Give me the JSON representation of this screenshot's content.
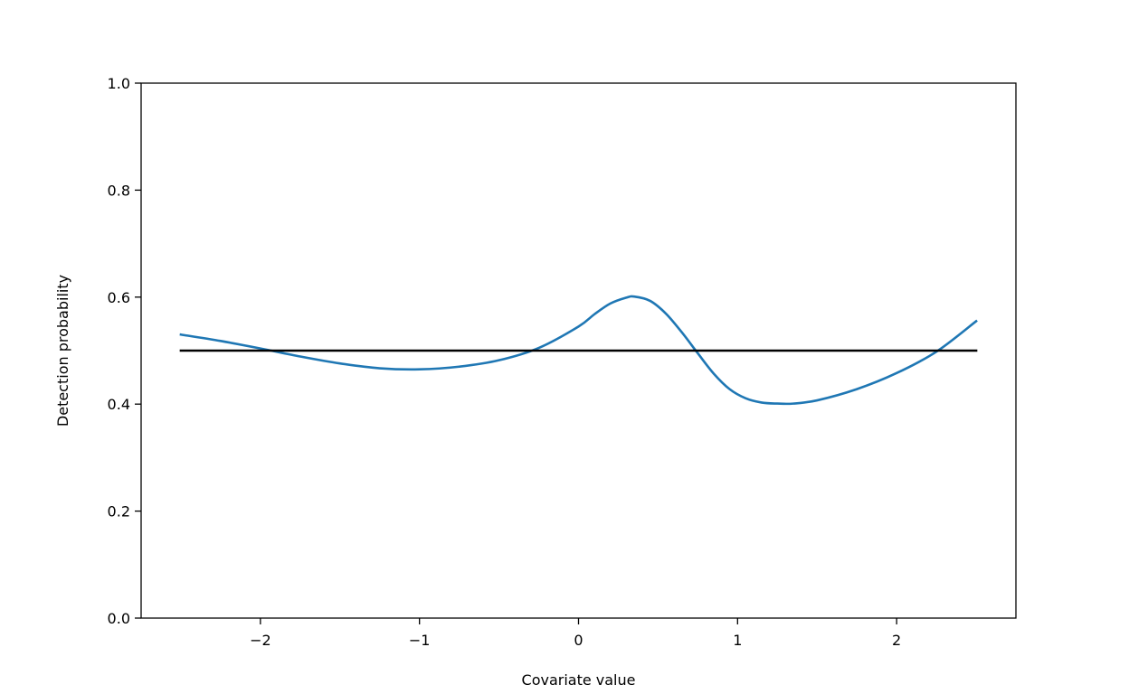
{
  "chart_data": {
    "type": "line",
    "title": "",
    "xlabel": "Covariate value",
    "ylabel": "Detection probability",
    "xlim": [
      -2.75,
      2.75
    ],
    "ylim": [
      0.0,
      1.0
    ],
    "x_ticks": [
      -2,
      -1,
      0,
      1,
      2
    ],
    "x_tick_labels": [
      "−2",
      "−1",
      "0",
      "1",
      "2"
    ],
    "y_ticks": [
      0.0,
      0.2,
      0.4,
      0.6,
      0.8,
      1.0
    ],
    "y_tick_labels": [
      "0.0",
      "0.2",
      "0.4",
      "0.6",
      "0.8",
      "1.0"
    ],
    "grid": false,
    "series": [
      {
        "color": "#1f77b4",
        "x": [
          -2.5,
          -2.25,
          -2.0,
          -1.75,
          -1.5,
          -1.25,
          -1.0,
          -0.75,
          -0.5,
          -0.25,
          0.0,
          0.1,
          0.2,
          0.3,
          0.35,
          0.45,
          0.55,
          0.65,
          0.75,
          0.85,
          0.95,
          1.05,
          1.15,
          1.25,
          1.35,
          1.5,
          1.75,
          2.0,
          2.25,
          2.5
        ],
        "y": [
          0.53,
          0.518,
          0.504,
          0.489,
          0.476,
          0.467,
          0.465,
          0.47,
          0.482,
          0.505,
          0.545,
          0.568,
          0.588,
          0.599,
          0.601,
          0.593,
          0.569,
          0.534,
          0.495,
          0.457,
          0.428,
          0.411,
          0.403,
          0.401,
          0.401,
          0.407,
          0.428,
          0.458,
          0.498,
          0.555
        ]
      },
      {
        "color": "#000000",
        "x": [
          -2.5,
          2.5
        ],
        "y": [
          0.5,
          0.5
        ]
      }
    ]
  }
}
